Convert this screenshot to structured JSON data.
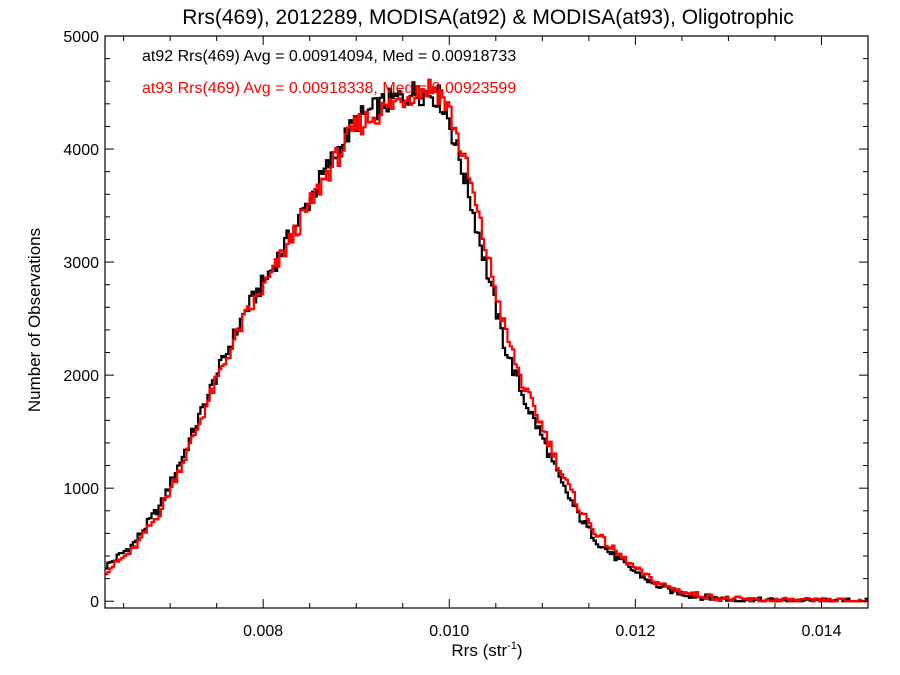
{
  "chart_data": {
    "type": "line",
    "title": "Rrs(469), 2012289, MODISA(at92) & MODISA(at93), Oligotrophic",
    "xlabel": "Rrs (str",
    "xlabel_sup": "-1",
    "xlabel_end": ")",
    "ylabel": "Number of Observations",
    "xlim": [
      0.0063,
      0.0145
    ],
    "ylim": [
      -60,
      5000
    ],
    "xticks": [
      0.008,
      0.01,
      0.012,
      0.014
    ],
    "xtick_labels": [
      "0.008",
      "0.010",
      "0.012",
      "0.014"
    ],
    "yticks": [
      0,
      1000,
      2000,
      3000,
      4000,
      5000
    ],
    "ytick_labels": [
      "0",
      "1000",
      "2000",
      "3000",
      "4000",
      "5000"
    ],
    "grid": false,
    "annotations": [
      {
        "text": "at92 Rrs(469) Avg = 0.00914094, Med = 0.00918733",
        "color": "#000000"
      },
      {
        "text": "at93 Rrs(469) Avg = 0.00918338, Med = 0.00923599",
        "color": "#ff0000"
      }
    ],
    "series": [
      {
        "color": "#000000",
        "x": [
          0.0063,
          0.0066,
          0.0069,
          0.0072,
          0.0075,
          0.0078,
          0.0081,
          0.0084,
          0.0087,
          0.009,
          0.0093,
          0.0096,
          0.0098,
          0.0099,
          0.01,
          0.0102,
          0.0104,
          0.0106,
          0.0108,
          0.011,
          0.0112,
          0.0114,
          0.0116,
          0.0118,
          0.012,
          0.0122,
          0.0124,
          0.0126,
          0.0128,
          0.013,
          0.0132,
          0.0134,
          0.0137,
          0.014,
          0.0145
        ],
        "y": [
          300,
          500,
          850,
          1400,
          2000,
          2550,
          2950,
          3400,
          3850,
          4250,
          4400,
          4500,
          4500,
          4450,
          4250,
          3650,
          2950,
          2250,
          1800,
          1450,
          1050,
          750,
          520,
          380,
          260,
          150,
          90,
          50,
          30,
          15,
          10,
          5,
          3,
          2,
          0
        ]
      },
      {
        "color": "#ff0000",
        "x": [
          0.0063,
          0.0066,
          0.0069,
          0.0072,
          0.0075,
          0.0078,
          0.0081,
          0.0084,
          0.0087,
          0.009,
          0.0093,
          0.0096,
          0.0098,
          0.0099,
          0.01,
          0.0102,
          0.0104,
          0.0106,
          0.0108,
          0.011,
          0.0112,
          0.0114,
          0.0116,
          0.0118,
          0.012,
          0.0122,
          0.0124,
          0.0126,
          0.0128,
          0.013,
          0.0132,
          0.0134,
          0.0137,
          0.014,
          0.0145
        ],
        "y": [
          260,
          450,
          800,
          1350,
          1950,
          2500,
          2900,
          3350,
          3800,
          4200,
          4350,
          4500,
          4550,
          4500,
          4350,
          3800,
          3100,
          2400,
          1900,
          1550,
          1150,
          820,
          580,
          430,
          290,
          180,
          110,
          65,
          40,
          20,
          12,
          6,
          4,
          2,
          0
        ]
      }
    ]
  }
}
